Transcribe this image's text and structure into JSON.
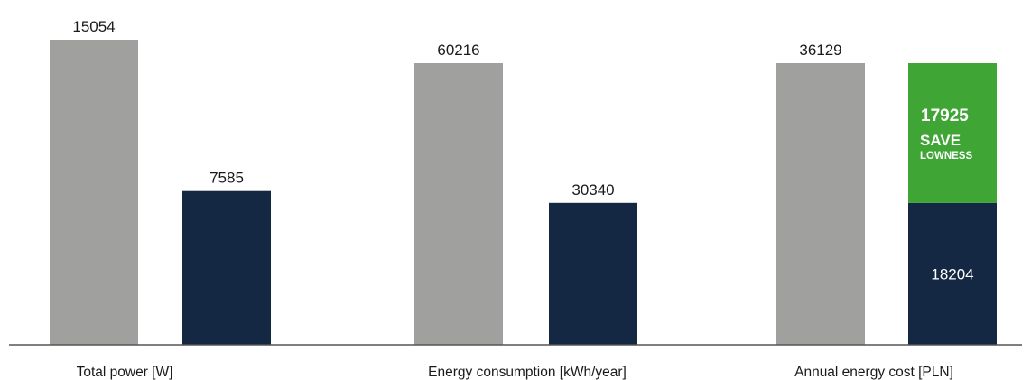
{
  "chart_data": {
    "type": "bar",
    "title": "",
    "xlabel": "",
    "ylabel": "",
    "grid": false,
    "categories": [
      "Total power [W]",
      "Energy consumption [kWh/year]",
      "Annual energy cost [PLN]"
    ],
    "series": [
      {
        "values": [
          15054,
          60216,
          36129
        ],
        "color": "#a0a09e"
      },
      {
        "values": [
          7585,
          30340,
          18204
        ],
        "color": "#142743"
      }
    ],
    "stack_on_last": {
      "value": 17925,
      "color": "#3fa535",
      "label_title": "SAVE",
      "label_sub": "LOWNESS"
    },
    "value_labels": {
      "cat0": [
        "15054",
        "7585"
      ],
      "cat1": [
        "60216",
        "30340"
      ],
      "cat2": [
        "36129",
        "18204",
        "17925"
      ]
    }
  },
  "colors": {
    "axis": "#555555",
    "text": "#1a1a1a"
  }
}
